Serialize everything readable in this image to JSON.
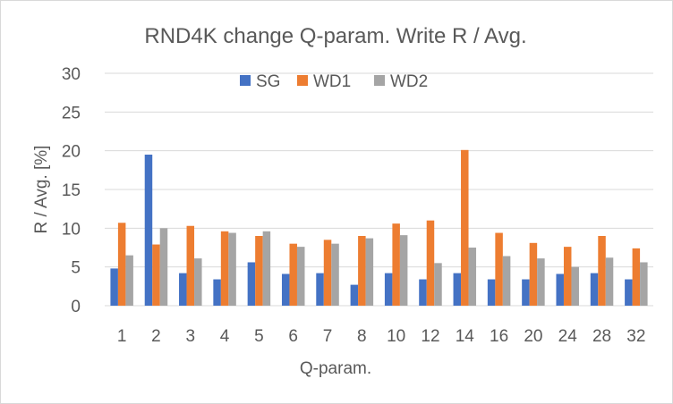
{
  "chart_data": {
    "type": "bar",
    "title": "RND4K change Q-param. Write R / Avg.",
    "xlabel": "Q-param.",
    "ylabel": "R / Avg. [%]",
    "ylim": [
      0,
      30
    ],
    "yticks": [
      "0",
      "5",
      "10",
      "15",
      "20",
      "25",
      "30"
    ],
    "grid": true,
    "legend_position": "top",
    "categories": [
      "1",
      "2",
      "3",
      "4",
      "5",
      "6",
      "7",
      "8",
      "10",
      "12",
      "14",
      "16",
      "20",
      "24",
      "28",
      "32"
    ],
    "series": [
      {
        "name": "SG",
        "color": "#4472C4",
        "values": [
          4.8,
          19.5,
          4.2,
          3.4,
          5.6,
          4.1,
          4.2,
          2.7,
          4.2,
          3.4,
          4.2,
          3.4,
          3.4,
          4.1,
          4.2,
          3.4
        ]
      },
      {
        "name": "WD1",
        "color": "#ED7D31",
        "values": [
          10.7,
          7.9,
          10.3,
          9.6,
          9.0,
          8.0,
          8.5,
          9.0,
          10.6,
          11.0,
          20.1,
          9.4,
          8.1,
          7.6,
          9.0,
          7.4
        ]
      },
      {
        "name": "WD2",
        "color": "#A5A5A5",
        "values": [
          6.5,
          10.0,
          6.1,
          9.4,
          9.6,
          7.6,
          8.0,
          8.7,
          9.1,
          5.5,
          7.5,
          6.4,
          6.1,
          5.0,
          6.2,
          5.6
        ]
      }
    ]
  }
}
